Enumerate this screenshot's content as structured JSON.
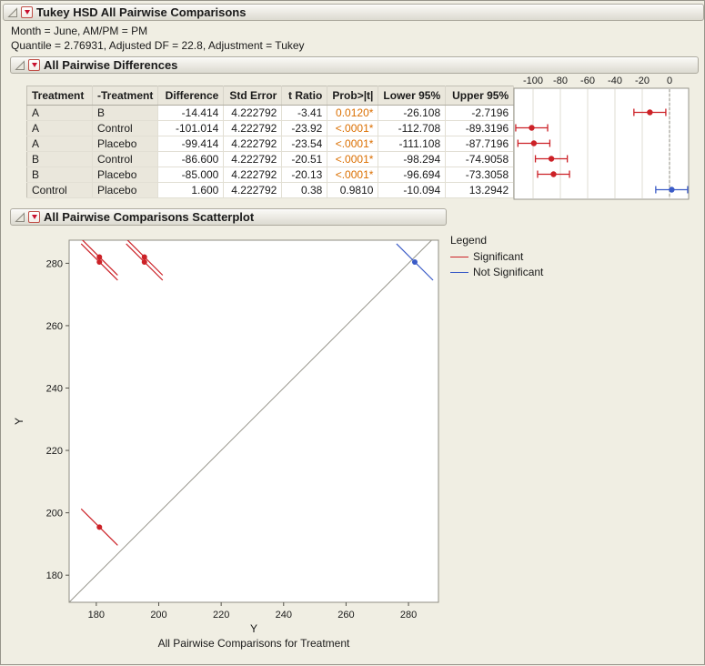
{
  "colors": {
    "window_bg": "#F0EEE3",
    "significant": "#CC2127",
    "not_significant": "#3A5BC7",
    "pvalue_highlight": "#DB6F00"
  },
  "titlebar": {
    "title": "Tukey HSD All Pairwise Comparisons"
  },
  "info_lines": [
    "Month = June, AM/PM = PM",
    "Quantile = 2.76931, Adjusted DF = 22.8, Adjustment = Tukey"
  ],
  "differences_section": {
    "title": "All Pairwise Differences"
  },
  "scatter_section": {
    "title": "All Pairwise Comparisons Scatterplot"
  },
  "table": {
    "columns": [
      "Treatment",
      "-Treatment",
      "Difference",
      "Std Error",
      "t Ratio",
      "Prob>|t|",
      "Lower 95%",
      "Upper 95%"
    ],
    "rows": [
      [
        "A",
        "B",
        "-14.414",
        "4.222792",
        "-3.41",
        "0.0120*",
        "-26.108",
        "-2.7196"
      ],
      [
        "A",
        "Control",
        "-101.014",
        "4.222792",
        "-23.92",
        "<.0001*",
        "-112.708",
        "-89.3196"
      ],
      [
        "A",
        "Placebo",
        "-99.414",
        "4.222792",
        "-23.54",
        "<.0001*",
        "-111.108",
        "-87.7196"
      ],
      [
        "B",
        "Control",
        "-86.600",
        "4.222792",
        "-20.51",
        "<.0001*",
        "-98.294",
        "-74.9058"
      ],
      [
        "B",
        "Placebo",
        "-85.000",
        "4.222792",
        "-20.13",
        "<.0001*",
        "-96.694",
        "-73.3058"
      ],
      [
        "Control",
        "Placebo",
        "1.600",
        "4.222792",
        "0.38",
        "0.9810",
        "-10.094",
        "13.2942"
      ]
    ],
    "significant_flags": [
      true,
      true,
      true,
      true,
      true,
      false
    ]
  },
  "legend": {
    "title": "Legend",
    "items": [
      {
        "label": "Significant",
        "color_key": "significant"
      },
      {
        "label": "Not Significant",
        "color_key": "not_significant"
      }
    ]
  },
  "chart_data": [
    {
      "type": "interval",
      "title": "Confidence intervals of pairwise differences",
      "x_ticks": [
        -100,
        -80,
        -60,
        -40,
        -20,
        0
      ],
      "x_range": [
        -114,
        14
      ],
      "reference_line": 0,
      "grid": true,
      "intervals": [
        {
          "pair": "A-B",
          "center": -14.414,
          "lower": -26.108,
          "upper": -2.7196,
          "significant": true
        },
        {
          "pair": "A-Control",
          "center": -101.014,
          "lower": -112.708,
          "upper": -89.3196,
          "significant": true
        },
        {
          "pair": "A-Placebo",
          "center": -99.414,
          "lower": -111.108,
          "upper": -87.7196,
          "significant": true
        },
        {
          "pair": "B-Control",
          "center": -86.6,
          "lower": -98.294,
          "upper": -74.9058,
          "significant": true
        },
        {
          "pair": "B-Placebo",
          "center": -85.0,
          "lower": -96.694,
          "upper": -73.3058,
          "significant": true
        },
        {
          "pair": "Control-Placebo",
          "center": 1.6,
          "lower": -10.094,
          "upper": 13.2942,
          "significant": false
        }
      ]
    },
    {
      "type": "scatter",
      "xlabel": "Y",
      "ylabel": "Y",
      "footnote": "All Pairwise Comparisons for Treatment",
      "x_ticks": [
        180,
        200,
        220,
        240,
        260,
        280
      ],
      "y_ticks": [
        180,
        200,
        220,
        240,
        260,
        280
      ],
      "x_range": [
        171.3,
        289.6
      ],
      "y_range": [
        171.3,
        287.4
      ],
      "identity_line": true,
      "segment_half_extent": 5.847,
      "points": [
        {
          "x": 181.0,
          "y": 195.414,
          "significant": true
        },
        {
          "x": 181.0,
          "y": 282.014,
          "significant": true
        },
        {
          "x": 181.0,
          "y": 280.414,
          "significant": true
        },
        {
          "x": 195.414,
          "y": 282.014,
          "significant": true
        },
        {
          "x": 195.414,
          "y": 280.414,
          "significant": true
        },
        {
          "x": 282.014,
          "y": 280.414,
          "significant": false
        }
      ]
    }
  ]
}
